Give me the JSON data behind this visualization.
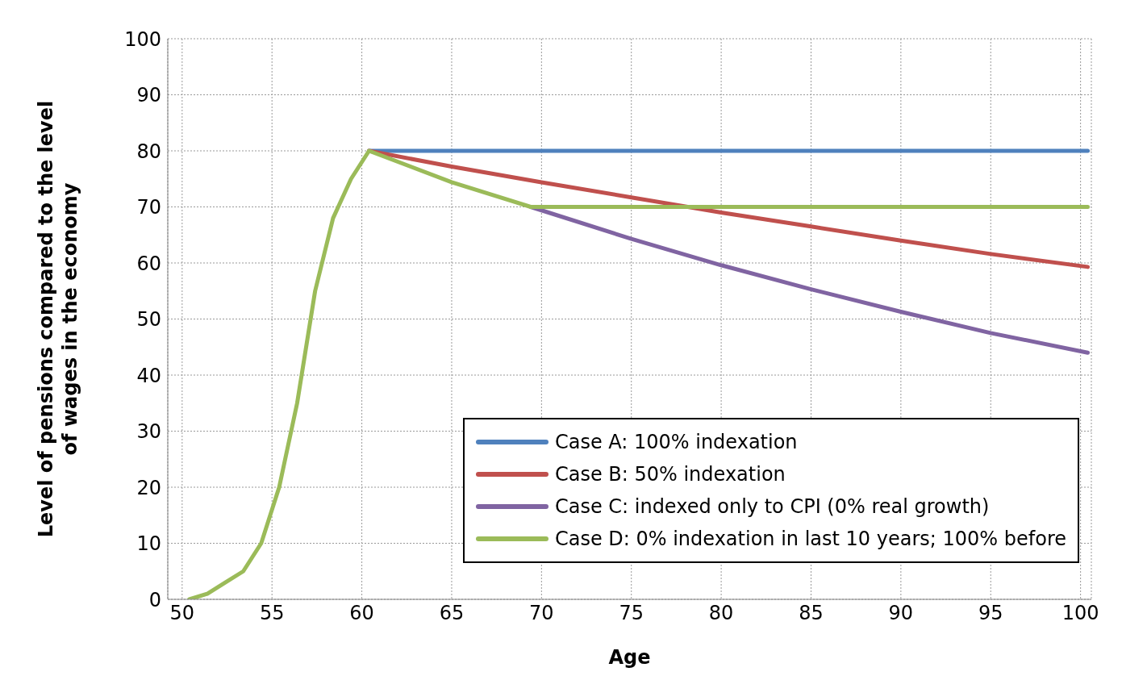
{
  "chart_data": {
    "type": "line",
    "xlabel": "Age",
    "ylabel": "Level of pensions compared to the level\nof wages in the economy",
    "xlim": [
      49.2,
      100.6
    ],
    "xticks": [
      50,
      55,
      60,
      65,
      70,
      75,
      80,
      85,
      90,
      95,
      100
    ],
    "ylim": [
      0,
      100
    ],
    "yticks": [
      0,
      10,
      20,
      30,
      40,
      50,
      60,
      70,
      80,
      90,
      100
    ],
    "grid": true,
    "legend": "bottom right",
    "marker": "none",
    "line_style": "solid",
    "series": [
      {
        "name": "Case A: 100% indexation",
        "color": "#4f81bd",
        "x": [
          60.4,
          65,
          70,
          75,
          80,
          85,
          90,
          95,
          100.4
        ],
        "values": [
          80,
          80,
          80,
          80,
          80,
          80,
          80,
          80,
          80
        ]
      },
      {
        "name": "Case B: 50% indexation",
        "color": "#c0504d",
        "x": [
          60.4,
          65,
          70,
          75,
          80,
          85,
          90,
          95,
          100.4
        ],
        "values": [
          80,
          77.2,
          74.4,
          71.7,
          69,
          66.5,
          64,
          61.6,
          59.3
        ]
      },
      {
        "name": "Case C: indexed only to CPI (0% real growth)",
        "color": "#8064a2",
        "x": [
          69.4,
          75,
          80,
          85,
          90,
          95,
          100.4
        ],
        "values": [
          70,
          64.3,
          59.6,
          55.3,
          51.3,
          47.5,
          44
        ]
      },
      {
        "name": "Case D: 0% indexation in last 10 years; 100% before",
        "color": "#9bbb59",
        "x": [
          50.4,
          51.4,
          52.4,
          53.4,
          54.4,
          55.4,
          56.4,
          57.4,
          58.4,
          59.4,
          60.4,
          65,
          69.4,
          75,
          80,
          85,
          90,
          95,
          100.4
        ],
        "values": [
          0,
          1,
          3,
          5,
          10,
          20,
          35,
          55,
          68,
          75,
          80,
          74.4,
          70,
          70,
          70,
          70,
          70,
          70,
          70
        ]
      }
    ]
  }
}
